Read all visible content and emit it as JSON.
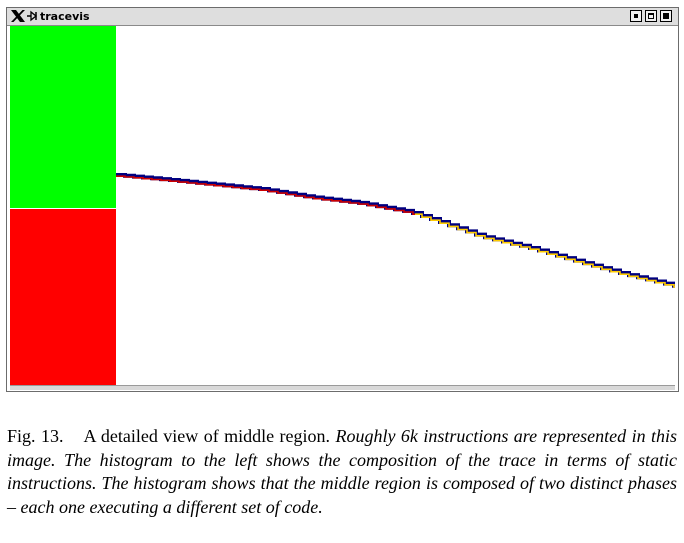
{
  "window": {
    "title": "tracevis",
    "icons": [
      "x-window-system-logo",
      "tracevis-app-icon"
    ],
    "controls": [
      "minimize",
      "maximize",
      "close"
    ]
  },
  "histogram": {
    "description_colors": {
      "phase_a": "#00ff00",
      "phase_b": "#ff0000"
    },
    "phase_a_fraction": 0.505,
    "phase_b_fraction": 0.495
  },
  "trace": {
    "colors": {
      "outline": "#000080",
      "stripe_a": "#cc0000",
      "stripe_b": "#ffcc00"
    }
  },
  "caption": {
    "label": "Fig. 13.",
    "lead": "A detailed view of middle region.",
    "body": "Roughly 6k instructions are represented in this image. The histogram to the left shows the composition of the trace in terms of static instructions. The histogram shows that the middle region is composed of two distinct phases – each one executing a different set of code."
  }
}
